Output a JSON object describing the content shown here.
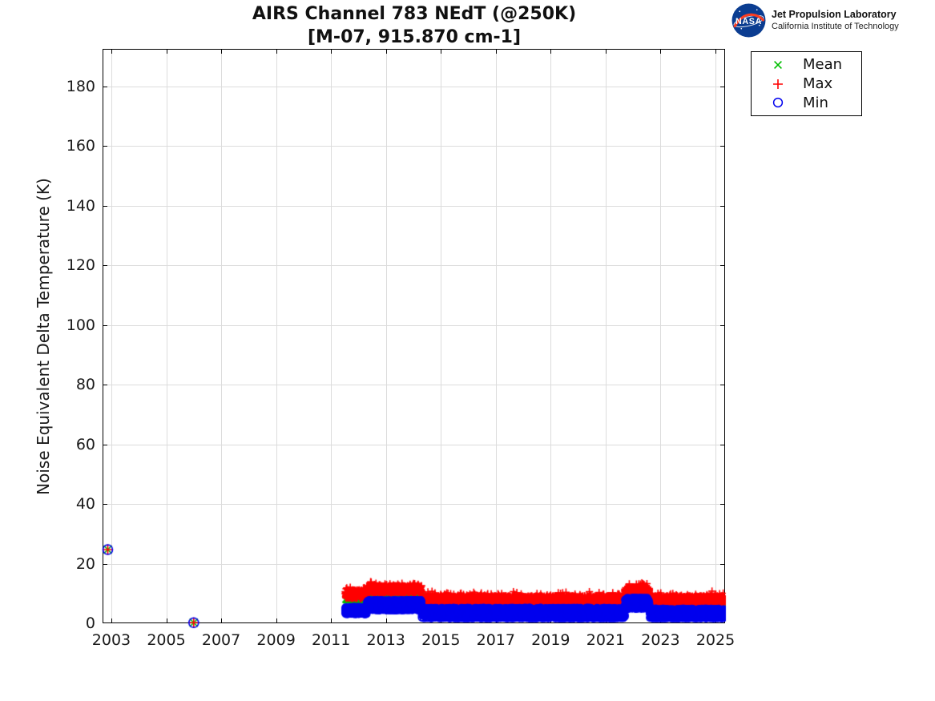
{
  "header": {
    "logo": {
      "nasa_text": "NASA",
      "org": "Jet Propulsion Laboratory",
      "sub": "California Institute of Technology",
      "nasa_blue": "#0B3D91",
      "nasa_red": "#FC3D21"
    }
  },
  "chart_data": {
    "type": "scatter",
    "title": "AIRS Channel 783 NEdT (@250K)",
    "subtitle": "[M-07, 915.870 cm-1]",
    "xlabel": "",
    "ylabel": "Noise Equivalent Delta Temperature (K)",
    "xlim": [
      2002.68,
      2025.35
    ],
    "ylim": [
      0,
      192.5
    ],
    "xticks": [
      2003,
      2005,
      2007,
      2009,
      2011,
      2013,
      2015,
      2017,
      2019,
      2021,
      2023,
      2025
    ],
    "yticks": [
      0,
      20,
      40,
      60,
      80,
      100,
      120,
      140,
      160,
      180
    ],
    "grid": true,
    "grid_color": "#dcdcdc",
    "legend_position": "outside-top-right",
    "series": [
      {
        "name": "Mean",
        "label": "Mean",
        "marker": "x",
        "color": "#00BE00"
      },
      {
        "name": "Max",
        "label": "Max",
        "marker": "+",
        "color": "#FF0000"
      },
      {
        "name": "Min",
        "label": "Min",
        "marker": "o",
        "color": "#0000EE"
      }
    ],
    "isolated_points": [
      {
        "x": 2002.87,
        "mean": 24.7,
        "max": 24.7,
        "min": 24.7
      },
      {
        "x": 2006.0,
        "mean": 0.2,
        "max": 0.2,
        "min": 0.2
      }
    ],
    "band_segments": [
      {
        "x_start": 2011.52,
        "x_end": 2012.3,
        "max": [
          8.3,
          11.2
        ],
        "mean": [
          7.6,
          8.2
        ],
        "min": [
          3.0,
          5.5
        ]
      },
      {
        "x_start": 2012.3,
        "x_end": 2014.3,
        "max": [
          10.2,
          12.6
        ],
        "mean": [
          8.8,
          9.4
        ],
        "min": [
          4.3,
          7.8
        ]
      },
      {
        "x_start": 2014.3,
        "x_end": 2021.7,
        "max": [
          6.3,
          9.2
        ],
        "mean": [
          6.3,
          6.9
        ],
        "min": [
          1.6,
          5.2
        ]
      },
      {
        "x_start": 2021.7,
        "x_end": 2022.6,
        "max": [
          9.8,
          12.2
        ],
        "mean": [
          7.5,
          8.2
        ],
        "min": [
          4.8,
          8.6
        ]
      },
      {
        "x_start": 2022.6,
        "x_end": 2025.33,
        "max": [
          6.3,
          9.2
        ],
        "mean": [
          6.2,
          6.8
        ],
        "min": [
          1.6,
          4.9
        ]
      }
    ],
    "mean_tail": {
      "x_start": 2025.28,
      "x_end": 2025.35,
      "range": [
        5.2,
        6.4
      ]
    }
  }
}
